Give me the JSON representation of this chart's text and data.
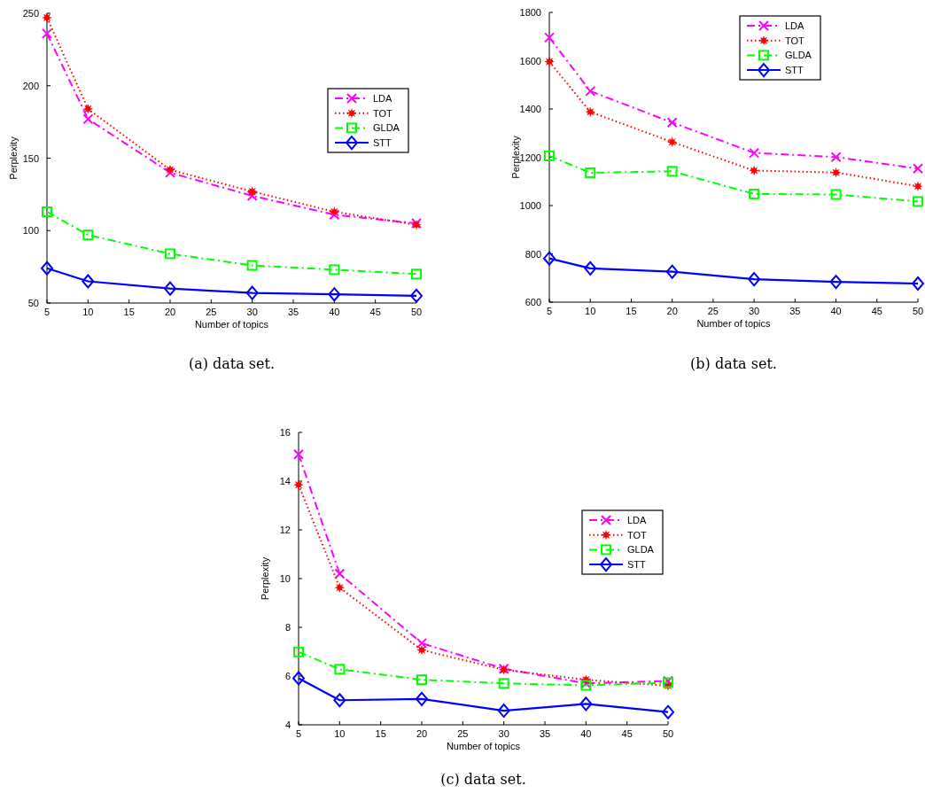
{
  "chart_data": [
    {
      "type": "line",
      "xlabel": "Number of topics",
      "ylabel": "Perplexity",
      "annotations": [
        "(a) data set."
      ],
      "x": [
        5,
        10,
        20,
        30,
        40,
        50
      ],
      "xlim": [
        5,
        50
      ],
      "xticks": [
        5,
        10,
        15,
        20,
        25,
        30,
        35,
        40,
        45,
        50
      ],
      "ylim": [
        50,
        250
      ],
      "yticks": [
        50,
        100,
        150,
        200,
        250
      ],
      "legend": "top right",
      "grid": false,
      "series": [
        {
          "name": "LDA",
          "color": "#ff00ff",
          "marker": "cross",
          "line_style": "dashed",
          "values": [
            236,
            177,
            140,
            124,
            111,
            105
          ]
        },
        {
          "name": "TOT",
          "color": "#ff0000",
          "marker": "star",
          "line_style": "dotted",
          "values": [
            247,
            184,
            142,
            127,
            113,
            104
          ]
        },
        {
          "name": "GLDA",
          "color": "#00ff00",
          "marker": "square",
          "line_style": "dashed",
          "values": [
            113,
            97,
            84,
            76,
            73,
            70
          ]
        },
        {
          "name": "STT",
          "color": "#0000ff",
          "marker": "diamond",
          "line_style": "solid",
          "values": [
            74,
            65,
            60,
            57,
            56,
            55
          ]
        }
      ]
    },
    {
      "type": "line",
      "xlabel": "Number of topics",
      "ylabel": "Perplexity",
      "annotations": [
        "(b) data set."
      ],
      "x": [
        5,
        10,
        20,
        30,
        40,
        50
      ],
      "xlim": [
        5,
        50
      ],
      "xticks": [
        5,
        10,
        15,
        20,
        25,
        30,
        35,
        40,
        45,
        50
      ],
      "ylim": [
        600,
        1800
      ],
      "yticks": [
        600,
        800,
        1000,
        1200,
        1400,
        1600,
        1800
      ],
      "legend": "top",
      "grid": false,
      "series": [
        {
          "name": "LDA",
          "color": "#ff00ff",
          "marker": "cross",
          "line_style": "dashed",
          "values": [
            1696,
            1474,
            1344,
            1218,
            1201,
            1153
          ]
        },
        {
          "name": "TOT",
          "color": "#ff0000",
          "marker": "star",
          "line_style": "dotted",
          "values": [
            1596,
            1388,
            1263,
            1145,
            1137,
            1080
          ]
        },
        {
          "name": "GLDA",
          "color": "#00ff00",
          "marker": "square",
          "line_style": "dashed",
          "values": [
            1206,
            1136,
            1142,
            1048,
            1046,
            1017
          ]
        },
        {
          "name": "STT",
          "color": "#0000ff",
          "marker": "diamond",
          "line_style": "solid",
          "values": [
            781,
            740,
            726,
            695,
            684,
            677
          ]
        }
      ]
    },
    {
      "type": "line",
      "xlabel": "Number of topics",
      "ylabel": "Perplexity",
      "annotations": [
        "(c) data set."
      ],
      "x": [
        5,
        10,
        20,
        30,
        40,
        50
      ],
      "xlim": [
        5,
        50
      ],
      "xticks": [
        5,
        10,
        15,
        20,
        25,
        30,
        35,
        40,
        45,
        50
      ],
      "ylim": [
        4,
        16
      ],
      "yticks": [
        4,
        6,
        8,
        10,
        12,
        14,
        16
      ],
      "legend": "right",
      "grid": false,
      "series": [
        {
          "name": "LDA",
          "color": "#ff00ff",
          "marker": "cross",
          "line_style": "dashed",
          "values": [
            15.1,
            10.2,
            7.35,
            6.3,
            5.7,
            5.8
          ]
        },
        {
          "name": "TOT",
          "color": "#ff0000",
          "marker": "star",
          "line_style": "dotted",
          "values": [
            13.85,
            9.63,
            7.07,
            6.26,
            5.85,
            5.6
          ]
        },
        {
          "name": "GLDA",
          "color": "#00ff00",
          "marker": "square",
          "line_style": "dashed",
          "values": [
            6.99,
            6.28,
            5.85,
            5.7,
            5.62,
            5.73
          ]
        },
        {
          "name": "STT",
          "color": "#0000ff",
          "marker": "diamond",
          "line_style": "solid",
          "values": [
            5.91,
            5.01,
            5.06,
            4.58,
            4.86,
            4.52
          ]
        }
      ]
    }
  ]
}
